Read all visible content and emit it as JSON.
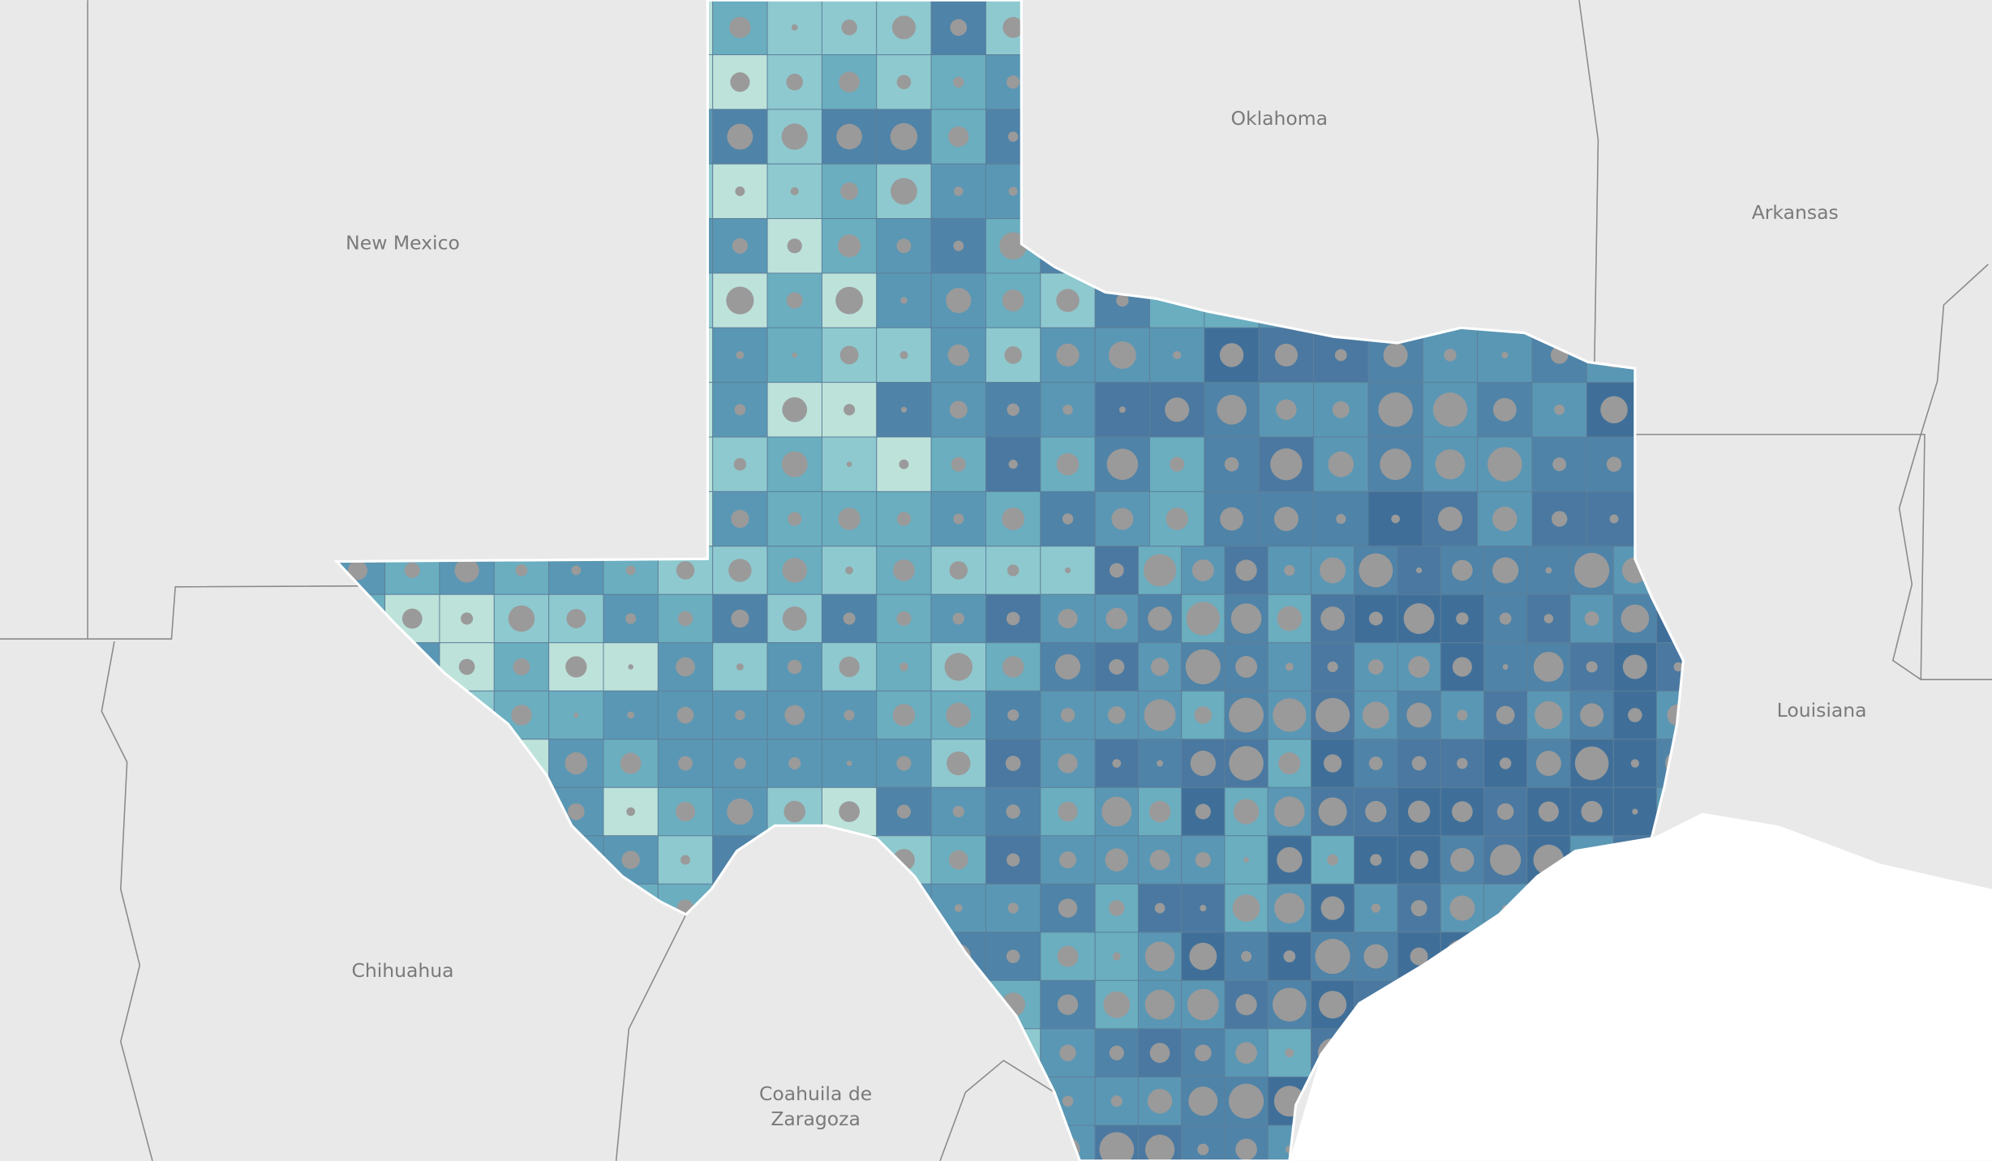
{
  "map_labels": [
    "Oklahoma",
    "Arkansas",
    "New Mexico",
    "Louisiana",
    "Chihuahua",
    "Coahuila de",
    "Zaragoza"
  ]
}
